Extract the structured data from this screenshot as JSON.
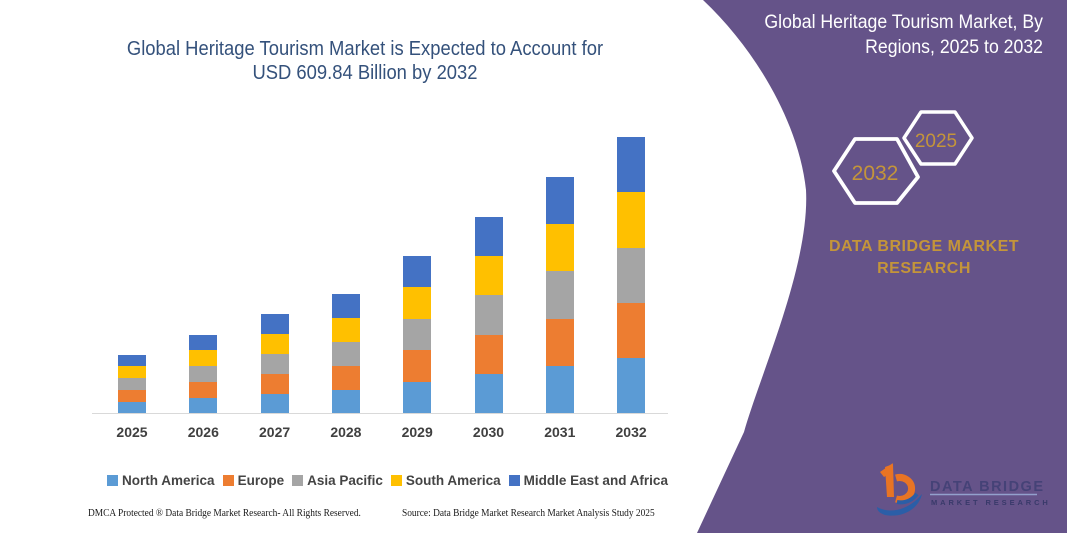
{
  "left_section": {
    "title_line1": "Global  Heritage Tourism Market is Expected to Account for",
    "title_line2": "USD 609.84 Billion by 2032",
    "title_color": "#34517B",
    "footer_left": "DMCA Protected ® Data Bridge Market Research-  All Rights Reserved.",
    "footer_right": "Source: Data Bridge Market Research  Market Analysis Study 2025"
  },
  "right_panel": {
    "title_line1": "Global Heritage Tourism Market, By",
    "title_line2": "Regions, 2025 to 2032",
    "hexagon_back_label": "2032",
    "hexagon_front_label": "2025",
    "brand_line1": "DATA BRIDGE MARKET",
    "brand_line2": "RESEARCH",
    "panel_color": "#655389",
    "gold": "#C4953A"
  },
  "logo": {
    "brand": "DATA BRIDGE",
    "tagline": "MARKET RESEARCH"
  },
  "chart_data": {
    "type": "bar",
    "stacked": true,
    "title": "Global Heritage Tourism Market is Expected to Account for USD 609.84 Billion by 2032",
    "categories": [
      "2025",
      "2026",
      "2027",
      "2028",
      "2029",
      "2030",
      "2031",
      "2032"
    ],
    "series": [
      {
        "name": "North America",
        "color": "#5B9BD5",
        "values": [
          26.0,
          34.8,
          43.7,
          52.9,
          69.7,
          86.9,
          104.5,
          121.97
        ]
      },
      {
        "name": "Europe",
        "color": "#ED7D31",
        "values": [
          26.0,
          34.8,
          43.7,
          52.9,
          69.7,
          86.9,
          104.5,
          121.97
        ]
      },
      {
        "name": "Asia Pacific",
        "color": "#A5A5A5",
        "values": [
          26.0,
          34.8,
          43.7,
          52.9,
          69.7,
          86.9,
          104.5,
          121.97
        ]
      },
      {
        "name": "South America",
        "color": "#FFC000",
        "values": [
          26.0,
          34.8,
          43.7,
          52.9,
          69.7,
          86.9,
          104.5,
          121.97
        ]
      },
      {
        "name": "Middle East and Africa",
        "color": "#4472C4",
        "values": [
          26.0,
          34.8,
          43.7,
          52.9,
          69.7,
          86.9,
          104.5,
          121.97
        ]
      }
    ],
    "totals": [
      130.1,
      174.2,
      218.3,
      264.7,
      348.5,
      434.5,
      522.7,
      609.84
    ],
    "units": "USD Billion",
    "ylim": [
      0,
      650
    ],
    "grid": false,
    "legend_position": "bottom",
    "axis_color": "#D9D9D9",
    "label_color": "#404040"
  }
}
